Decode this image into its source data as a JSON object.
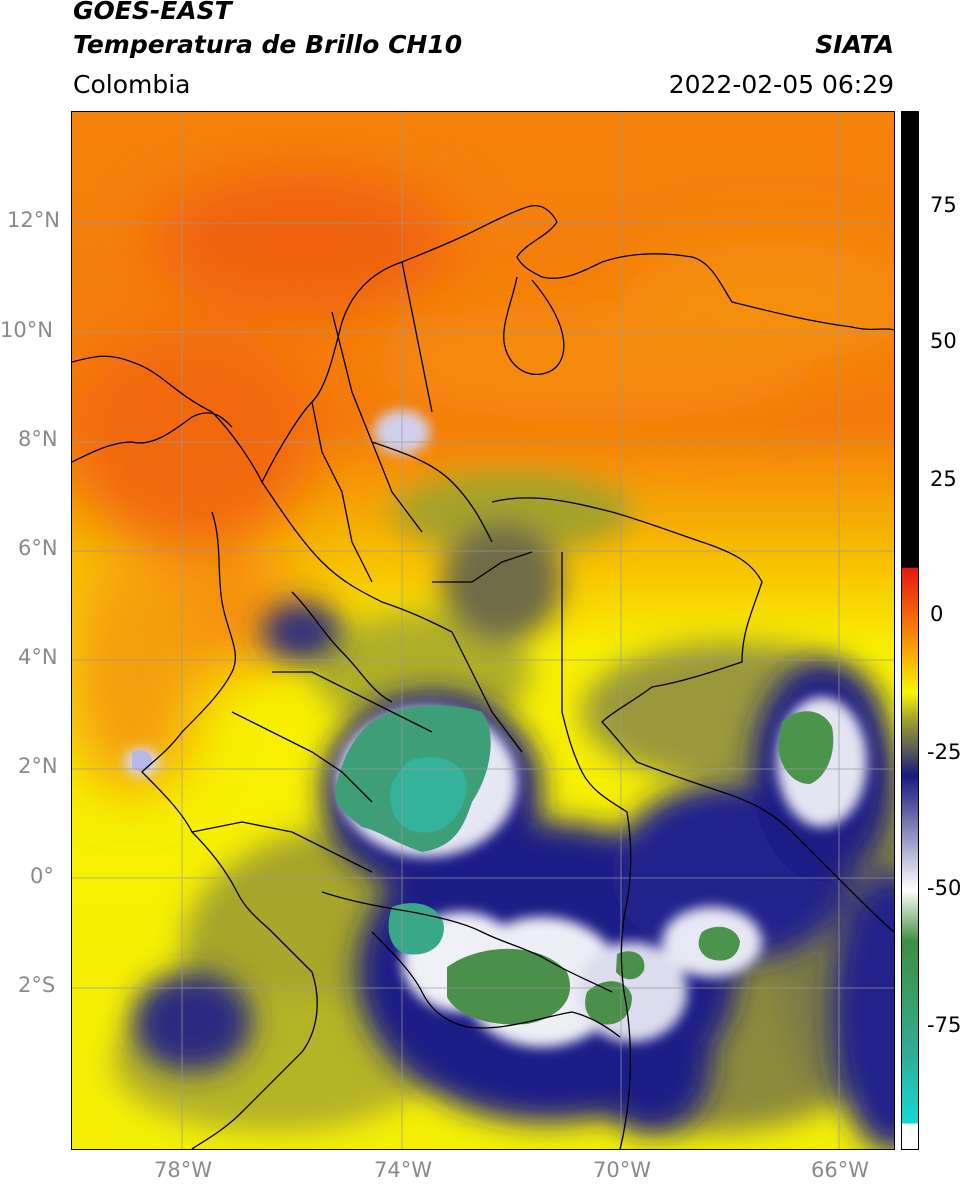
{
  "header": {
    "satellite": "GOES-EAST",
    "product": "Temperatura de Brillo CH10",
    "region": "Colombia",
    "organization": "SIATA",
    "datetime": "2022-02-05 06:29"
  },
  "map": {
    "y_axis_labels": [
      "12°N",
      "10°N",
      "8°N",
      "6°N",
      "4°N",
      "2°N",
      "0°",
      "2°S"
    ],
    "x_axis_labels": [
      "78°W",
      "74°W",
      "70°W",
      "66°W"
    ],
    "gridlines": true
  },
  "colorbar": {
    "tick_labels": [
      "75",
      "50",
      "25",
      "0",
      "-25",
      "-50",
      "-75"
    ],
    "colors": {
      "hot_limit": "#000000",
      "warm_high": "#e8170a",
      "orange": "#f5800a",
      "yellow": "#f9f500",
      "olive": "#a3a32a",
      "gray": "#5a5a5a",
      "navy": "#18187e",
      "white": "#ffffff",
      "green": "#3f8f3f",
      "teal": "#2fae97",
      "cyan": "#17d8d8"
    }
  }
}
